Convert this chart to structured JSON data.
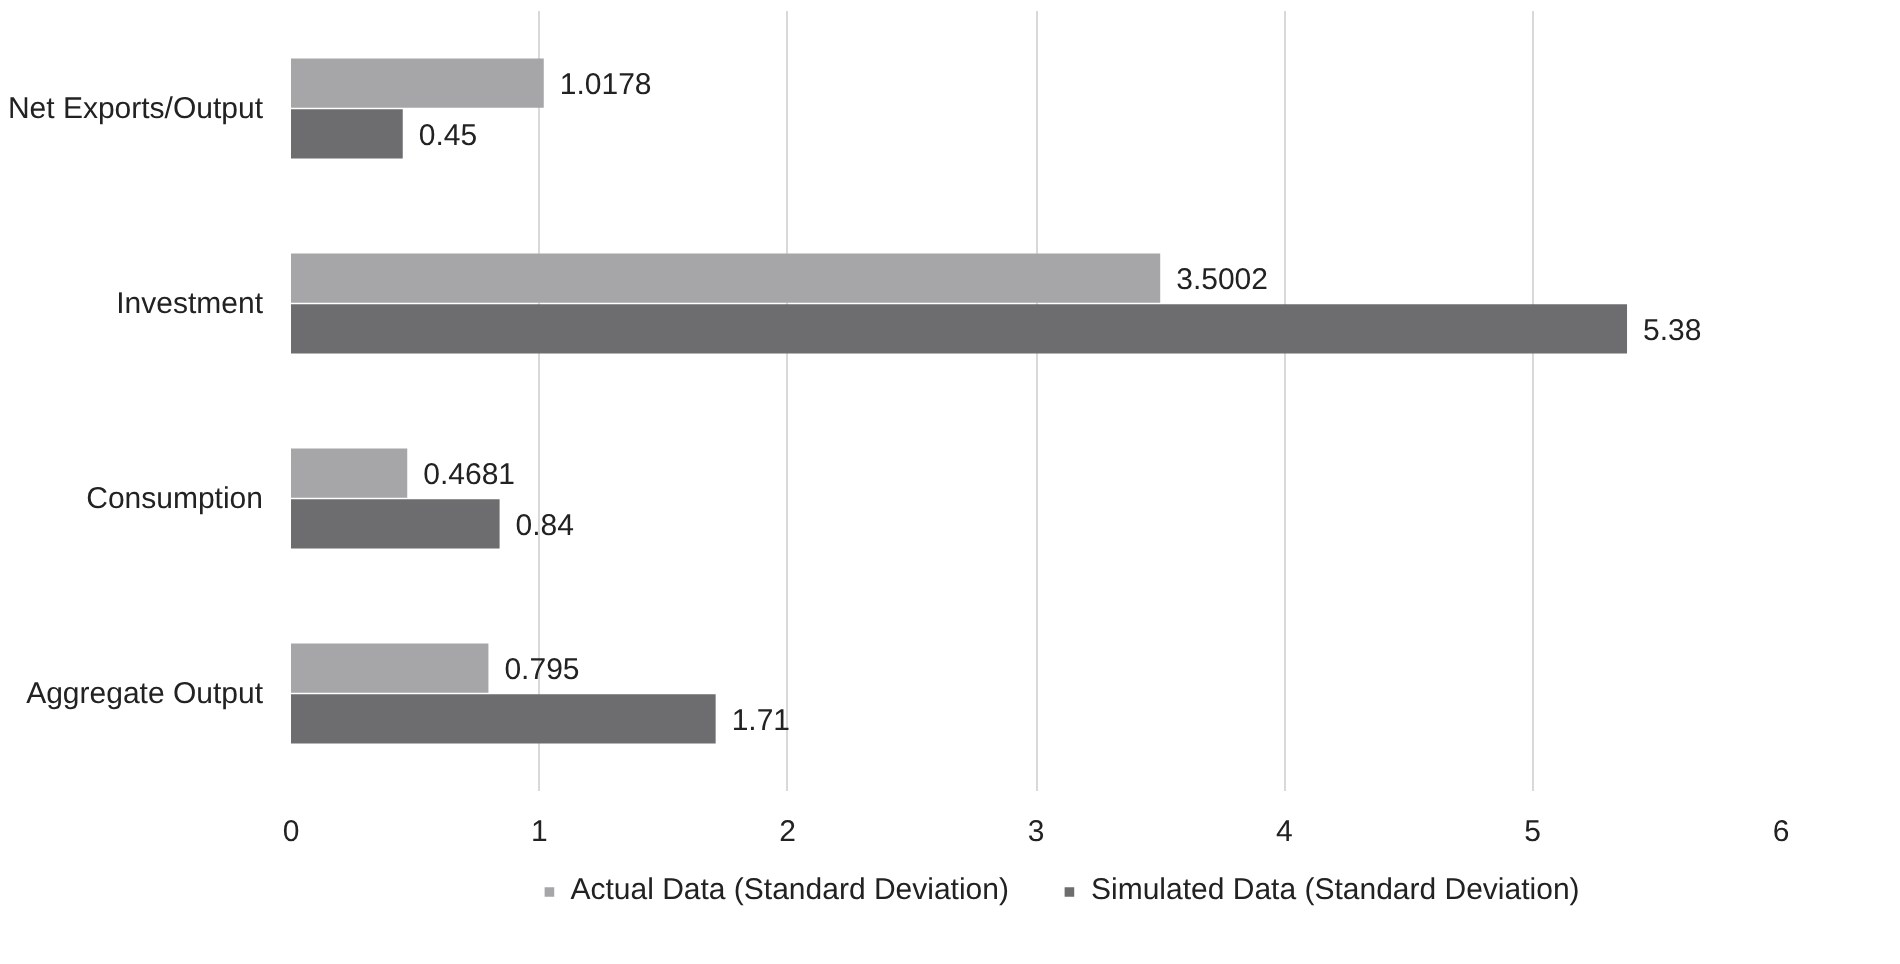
{
  "chart_data": {
    "type": "bar",
    "orientation": "horizontal",
    "categories": [
      "Net Exports/Output",
      "Investment",
      "Consumption",
      "Aggregate Output"
    ],
    "series": [
      {
        "name": "Actual Data (Standard Deviation)",
        "color": "#a6a6a8",
        "values": [
          1.0178,
          3.5002,
          0.4681,
          0.795
        ]
      },
      {
        "name": "Simulated Data (Standard Deviation)",
        "color": "#6d6d6f",
        "values": [
          0.45,
          5.38,
          0.84,
          1.71
        ]
      }
    ],
    "xlim": [
      0,
      6
    ],
    "xticks": [
      0,
      1,
      2,
      3,
      4,
      5,
      6
    ],
    "grid": "x",
    "legend": "bottom",
    "data_labels": true
  }
}
